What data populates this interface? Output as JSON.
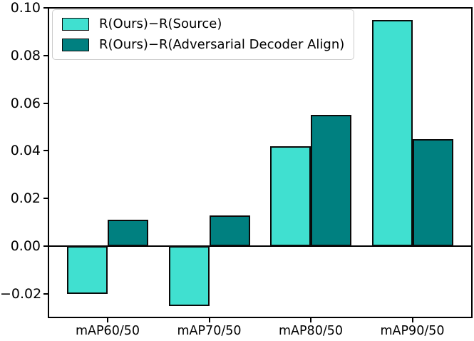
{
  "chart_data": {
    "type": "bar",
    "title": "",
    "xlabel": "",
    "ylabel": "",
    "categories": [
      "mAP60/50",
      "mAP70/50",
      "mAP80/50",
      "mAP90/50"
    ],
    "series": [
      {
        "name": "R(Ours)−R(Source)",
        "color": "#40E0D0",
        "values": [
          -0.02,
          -0.025,
          0.042,
          0.095
        ]
      },
      {
        "name": "R(Ours)−R(Adversarial Decoder Align)",
        "color": "#008080",
        "values": [
          0.011,
          0.013,
          0.055,
          0.045
        ]
      }
    ],
    "bar_edge_color": "#0a0a0a",
    "ylim": [
      -0.0302,
      0.1003
    ],
    "yticks": [
      -0.02,
      0.0,
      0.02,
      0.04,
      0.06,
      0.08,
      0.1
    ],
    "ytick_labels": [
      "−0.02",
      "0.00",
      "0.02",
      "0.04",
      "0.06",
      "0.08",
      "0.10"
    ],
    "grid": false,
    "legend_position": "upper left",
    "zero_line": true
  }
}
